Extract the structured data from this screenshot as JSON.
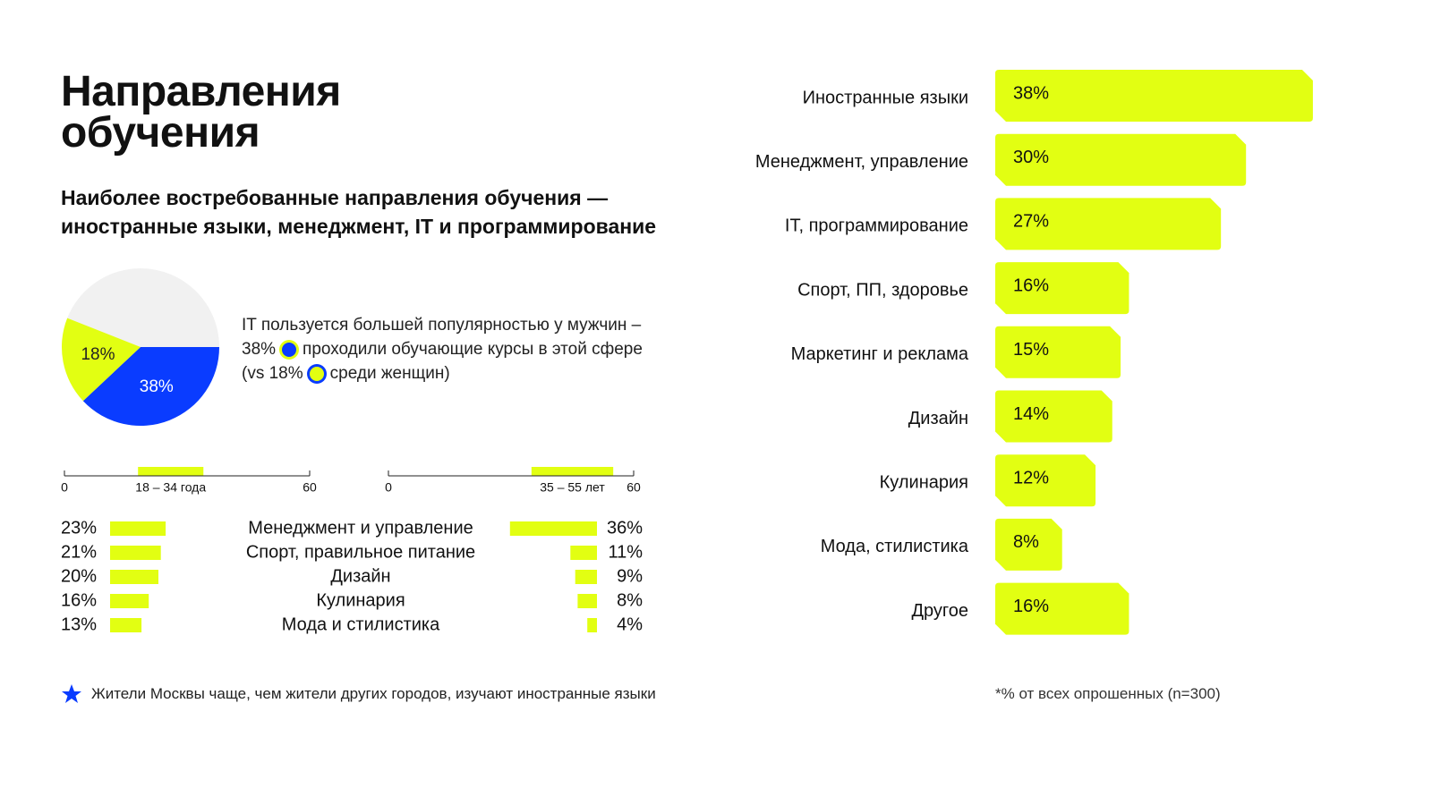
{
  "title": "Направления обучения",
  "subtitle": [
    "Наиболее востребованные направления обучения —",
    "иностранные языки, менеджмент, IT и программирование"
  ],
  "pie_note": [
    "IT пользуется большей популярностью у мужчин – 38%",
    "проходили обучающие курсы в этой сфере (vs 18%",
    "среди женщин)"
  ],
  "star_note": "Жители Москвы чаще, чем жители других городов, изучают иностранные языки",
  "footnote": "*% от всех опрошенных (n=300)",
  "chart_data": [
    {
      "type": "pie",
      "values": [
        38,
        18
      ],
      "value_labels": [
        "38%",
        "18%"
      ],
      "colors": [
        "#0a3cff",
        "#e2ff12"
      ]
    },
    {
      "type": "range",
      "xlim": [
        0,
        60
      ],
      "xticks": [
        0,
        60
      ],
      "range": [
        18,
        34
      ],
      "label": "18 – 34 года",
      "color": "#e2ff12"
    },
    {
      "type": "range",
      "xlim": [
        0,
        60
      ],
      "xticks": [
        0,
        60
      ],
      "range": [
        35,
        55
      ],
      "label": "35 – 55 лет",
      "color": "#e2ff12"
    },
    {
      "type": "butterfly",
      "categories": [
        "Менеджмент и управление",
        "Спорт, правильное питание",
        "Дизайн",
        "Кулинария",
        "Мода и стилистика"
      ],
      "series": [
        {
          "color": "#e2ff12",
          "values": [
            23,
            21,
            20,
            16,
            13
          ],
          "value_labels": [
            "23%",
            "21%",
            "20%",
            "16%",
            "13%"
          ]
        },
        {
          "color": "#e2ff12",
          "values": [
            36,
            11,
            9,
            8,
            4
          ],
          "value_labels": [
            "36%",
            "11%",
            "9%",
            "8%",
            "4%"
          ]
        }
      ]
    },
    {
      "type": "tabbar",
      "color": "#e2ff12",
      "categories": [
        "Иностранные языки",
        "Менеджмент, управление",
        "IT, программирование",
        "Спорт, ПП, здоровье",
        "Маркетинг и реклама",
        "Дизайн",
        "Кулинария",
        "Мода, стилистика",
        "Другое"
      ],
      "values": [
        38,
        30,
        27,
        16,
        15,
        14,
        12,
        8,
        16
      ],
      "value_labels": [
        "38%",
        "30%",
        "27%",
        "16%",
        "15%",
        "14%",
        "12%",
        "8%",
        "16%"
      ]
    }
  ]
}
